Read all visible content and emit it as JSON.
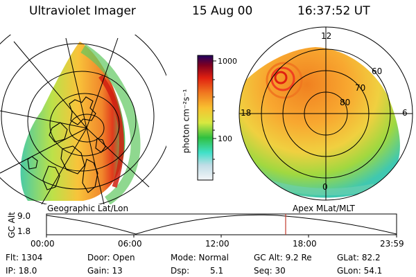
{
  "header": {
    "title": "Ultraviolet Imager",
    "date": "15 Aug 00",
    "time": "16:37:52 UT"
  },
  "colorbar": {
    "unit_label": "photon cm⁻²s⁻¹",
    "ticks": [
      "1000",
      "100"
    ]
  },
  "left_panel": {
    "label": "Geographic Lat/Lon"
  },
  "right_panel": {
    "label": "Apex MLat/MLT",
    "mlt_labels": [
      "12",
      "18",
      "6",
      "0"
    ],
    "lat_labels": [
      "60",
      "70",
      "80"
    ]
  },
  "timeline": {
    "ylabel": "GC Alt",
    "y_ticks": [
      "9.0",
      "1.8"
    ],
    "x_ticks": [
      "00:00",
      "06:00",
      "12:00",
      "18:00",
      "23:59"
    ],
    "marker_time": "16:37:52"
  },
  "info": {
    "flt": "Flt: 1304",
    "ip": "IP: 18.0",
    "door": "Door: Open",
    "gain": "Gain: 13",
    "mode": "Mode: Normal",
    "dsp_label": "Dsp:",
    "dsp_value": "5.1",
    "gcalt": "GC Alt: 9.2 Re",
    "seq": "Seq: 30",
    "glat": "GLat: 82.2",
    "glon": "GLon: 54.1"
  },
  "colors": {
    "marker": "#c0392b",
    "colorbar_stops": [
      "#e0e8ee",
      "#40e0c8",
      "#30c040",
      "#d8e840",
      "#f8c030",
      "#f07820",
      "#e02010",
      "#800020",
      "#200060"
    ]
  }
}
